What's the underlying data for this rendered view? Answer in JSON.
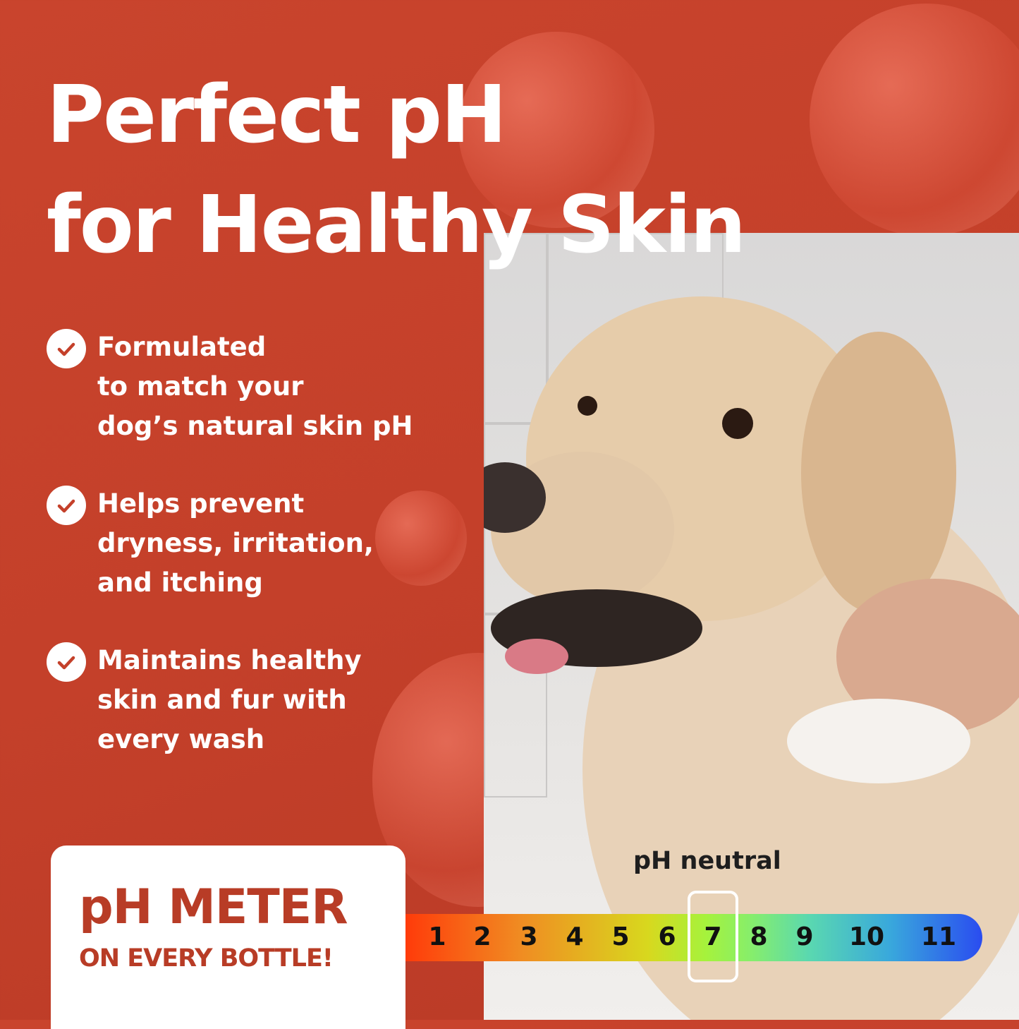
{
  "title": {
    "line1": "Perfect pH",
    "line2": "for Healthy Skin"
  },
  "bullets": [
    {
      "icon": "check-circle-icon",
      "lines": [
        "Formulated",
        "to match your",
        "dog’s natural skin pH"
      ]
    },
    {
      "icon": "check-circle-icon",
      "lines": [
        "Helps prevent",
        "dryness, irritation,",
        "and itching"
      ]
    },
    {
      "icon": "check-circle-icon",
      "lines": [
        "Maintains healthy",
        "skin and fur with",
        "every wash"
      ]
    }
  ],
  "meter_box": {
    "line1": "pH METER",
    "line2": "ON EVERY BOTTLE!"
  },
  "ph_scale": {
    "label": "pH neutral",
    "values": [
      "1",
      "2",
      "3",
      "4",
      "5",
      "6",
      "7",
      "8",
      "9",
      "10",
      "11"
    ],
    "highlighted": "7"
  },
  "colors": {
    "background": "#c4402a",
    "accent_text": "#b83c26"
  }
}
